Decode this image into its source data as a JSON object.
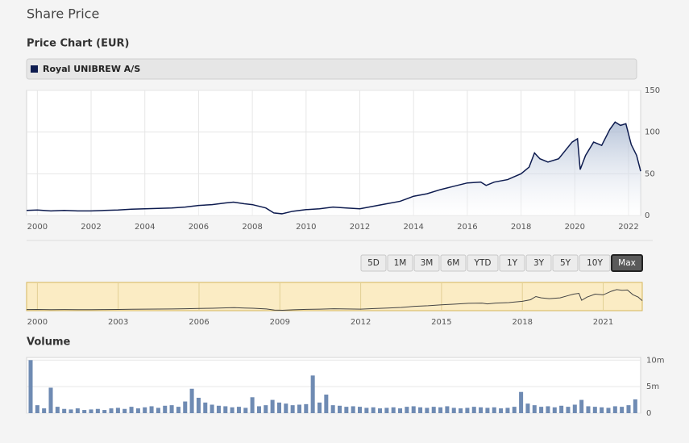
{
  "header": {
    "title": "Share Price"
  },
  "range_selector": {
    "buttons": [
      "5D",
      "1M",
      "3M",
      "6M",
      "YTD",
      "1Y",
      "3Y",
      "5Y",
      "10Y",
      "Max"
    ],
    "selected": "Max"
  },
  "chart_data": [
    {
      "type": "area",
      "title": "Price Chart (EUR)",
      "x": [
        1999.6,
        2000,
        2000.5,
        2001,
        2001.5,
        2002,
        2002.5,
        2003,
        2003.5,
        2004,
        2004.5,
        2005,
        2005.5,
        2006,
        2006.5,
        2007,
        2007.3,
        2007.7,
        2008,
        2008.5,
        2008.8,
        2009.1,
        2009.5,
        2010,
        2010.5,
        2011,
        2011.5,
        2012,
        2012.5,
        2013,
        2013.5,
        2014,
        2014.5,
        2015,
        2015.5,
        2016,
        2016.5,
        2016.7,
        2017,
        2017.5,
        2018,
        2018.3,
        2018.5,
        2018.7,
        2019,
        2019.4,
        2019.7,
        2019.9,
        2020.1,
        2020.2,
        2020.4,
        2020.7,
        2021,
        2021.3,
        2021.5,
        2021.7,
        2021.9,
        2022.1,
        2022.3,
        2022.45
      ],
      "series": [
        {
          "name": "Royal UNIBREW A/S",
          "color": "#0d1b4f",
          "values": [
            6,
            6.5,
            5.5,
            6,
            5.5,
            5.5,
            6,
            6.5,
            7.5,
            8,
            8.5,
            9,
            10,
            12,
            13,
            15,
            16,
            14,
            13,
            9,
            3,
            2,
            5,
            7,
            8,
            10,
            9,
            8,
            11,
            14,
            17,
            23,
            26,
            31,
            35,
            39,
            40,
            36,
            40,
            43,
            50,
            58,
            75,
            68,
            64,
            68,
            80,
            88,
            92,
            55,
            72,
            88,
            84,
            103,
            112,
            108,
            110,
            85,
            72,
            53
          ]
        }
      ],
      "xlim": [
        1999.6,
        2022.45
      ],
      "xticks": [
        2000,
        2002,
        2004,
        2006,
        2008,
        2010,
        2012,
        2014,
        2016,
        2018,
        2020,
        2022
      ],
      "ylim": [
        0,
        150
      ],
      "yticks": [
        0,
        50,
        100,
        150
      ],
      "grid": true
    },
    {
      "type": "navigator",
      "background": "#fbecc4",
      "border": "#d6b65a",
      "xlim": [
        1999.6,
        2022.45
      ],
      "xticks": [
        2000,
        2003,
        2006,
        2009,
        2012,
        2015,
        2018,
        2021
      ]
    },
    {
      "type": "bar",
      "title": "Volume",
      "color": "#6f8bb3",
      "x": [
        1999.75,
        2000,
        2000.25,
        2000.5,
        2000.75,
        2001,
        2001.25,
        2001.5,
        2001.75,
        2002,
        2002.25,
        2002.5,
        2002.75,
        2003,
        2003.25,
        2003.5,
        2003.75,
        2004,
        2004.25,
        2004.5,
        2004.75,
        2005,
        2005.25,
        2005.5,
        2005.75,
        2006,
        2006.25,
        2006.5,
        2006.75,
        2007,
        2007.25,
        2007.5,
        2007.75,
        2008,
        2008.25,
        2008.5,
        2008.75,
        2009,
        2009.25,
        2009.5,
        2009.75,
        2010,
        2010.25,
        2010.5,
        2010.75,
        2011,
        2011.25,
        2011.5,
        2011.75,
        2012,
        2012.25,
        2012.5,
        2012.75,
        2013,
        2013.25,
        2013.5,
        2013.75,
        2014,
        2014.25,
        2014.5,
        2014.75,
        2015,
        2015.25,
        2015.5,
        2015.75,
        2016,
        2016.25,
        2016.5,
        2016.75,
        2017,
        2017.25,
        2017.5,
        2017.75,
        2018,
        2018.25,
        2018.5,
        2018.75,
        2019,
        2019.25,
        2019.5,
        2019.75,
        2020,
        2020.25,
        2020.5,
        2020.75,
        2021,
        2021.25,
        2021.5,
        2021.75,
        2022,
        2022.25
      ],
      "values": [
        10000000,
        1500000,
        900000,
        4800000,
        1200000,
        800000,
        700000,
        900000,
        600000,
        700000,
        800000,
        600000,
        900000,
        1000000,
        800000,
        1200000,
        900000,
        1100000,
        1300000,
        1000000,
        1400000,
        1500000,
        1200000,
        2200000,
        4600000,
        2900000,
        2000000,
        1600000,
        1400000,
        1300000,
        1100000,
        1200000,
        1000000,
        3000000,
        1300000,
        1500000,
        2500000,
        2000000,
        1800000,
        1500000,
        1600000,
        1700000,
        7100000,
        2000000,
        3500000,
        1500000,
        1400000,
        1200000,
        1300000,
        1200000,
        1000000,
        1100000,
        900000,
        1000000,
        1100000,
        900000,
        1200000,
        1300000,
        1100000,
        1000000,
        1200000,
        1100000,
        1300000,
        1000000,
        900000,
        1000000,
        1200000,
        1100000,
        1000000,
        1100000,
        900000,
        1000000,
        1200000,
        4000000,
        1800000,
        1500000,
        1200000,
        1300000,
        1100000,
        1400000,
        1200000,
        1600000,
        2500000,
        1300000,
        1200000,
        1100000,
        1000000,
        1300000,
        1200000,
        1500000,
        2600000
      ],
      "xlim": [
        1999.6,
        2022.45
      ],
      "ylim": [
        0,
        10500000
      ],
      "yticks": [
        0,
        {
          "value": 5000000,
          "label": "5m"
        },
        {
          "value": 10000000,
          "label": "10m"
        }
      ],
      "grid": true
    }
  ]
}
